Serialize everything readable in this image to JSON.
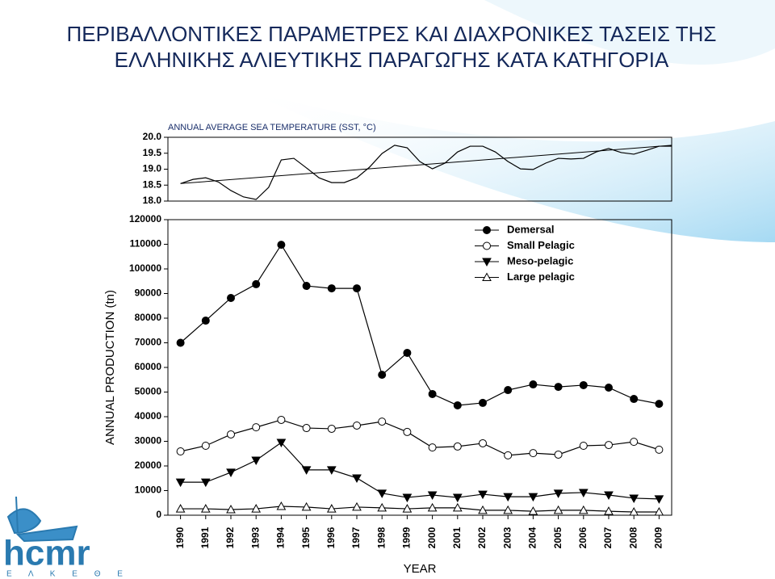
{
  "title_lines": [
    "ΠΕΡΙΒΑΛΛΟΝΤΙΚΕΣ ΠΑΡΑΜΕΤΡΕΣ ΚΑΙ ΔΙΑΧΡΟΝΙΚΕΣ ΤΑΣΕΙΣ  ΤΗΣ",
    "ΕΛΛΗΝΙΚΗΣ ΑΛΙΕΥΤΙΚΗΣ ΠΑΡΑΓΩΓΗΣ ΚΑΤΑ ΚΑΤΗΓΟΡΙΑ"
  ],
  "logo": {
    "name": "hcmr",
    "subtitle": "Ε Λ Κ Ε Θ Ε"
  },
  "chart_data": [
    {
      "type": "line",
      "title": "ANNUAL AVERAGE SEA TEMPERATURE (SST, °C)",
      "color": "#000000",
      "x": [
        1990,
        1990.5,
        1991,
        1991.5,
        1992,
        1992.5,
        1993,
        1993.5,
        1994,
        1994.5,
        1995,
        1995.5,
        1996,
        1996.5,
        1997,
        1997.5,
        1998,
        1998.5,
        1999,
        1999.5,
        2000,
        2000.5,
        2001,
        2001.5,
        2002,
        2002.5,
        2003,
        2003.5,
        2004,
        2004.5,
        2005,
        2005.5,
        2006,
        2006.5,
        2007,
        2007.5,
        2008,
        2008.5,
        2009,
        2009.5
      ],
      "values": [
        18.55,
        18.68,
        18.73,
        18.6,
        18.33,
        18.13,
        18.05,
        18.43,
        19.29,
        19.34,
        19.04,
        18.73,
        18.58,
        18.58,
        18.73,
        19.06,
        19.49,
        19.75,
        19.67,
        19.24,
        19.01,
        19.19,
        19.54,
        19.72,
        19.72,
        19.54,
        19.24,
        19.01,
        18.99,
        19.19,
        19.34,
        19.32,
        19.34,
        19.54,
        19.65,
        19.52,
        19.47,
        19.59,
        19.72,
        19.72
      ],
      "trend": {
        "x": [
          1990,
          2009.5
        ],
        "values": [
          18.55,
          19.75
        ]
      },
      "xlim": [
        1989.5,
        2009.5
      ],
      "ylim": [
        18.0,
        20.0
      ],
      "yticks": [
        {
          "value": 18,
          "label": "18.0"
        },
        18.5,
        {
          "value": 19,
          "label": "19.0"
        },
        19.5,
        {
          "value": 20,
          "label": "20.0"
        }
      ]
    },
    {
      "type": "line",
      "x_label": "YEAR",
      "y_label": "ANNUAL PRODUCTION (tn)",
      "legend": "upper right",
      "categories": [
        "1990",
        "1991",
        "1992",
        "1993",
        "1994",
        "1995",
        "1996",
        "1997",
        "1998",
        "1999",
        "2000",
        "2001",
        "2002",
        "2003",
        "2004",
        "2005",
        "2006",
        "2007",
        "2008",
        "2009"
      ],
      "ylim": [
        0,
        120000
      ],
      "yticks": [
        0,
        10000,
        20000,
        30000,
        40000,
        50000,
        60000,
        70000,
        80000,
        90000,
        100000,
        110000,
        120000
      ],
      "series": [
        {
          "name": "Demersal",
          "color": "#000000",
          "marker": "circle",
          "marker_fill": "#000000",
          "values": [
            70000,
            79000,
            88200,
            93800,
            109800,
            93100,
            92100,
            92100,
            57000,
            65900,
            49200,
            44600,
            45600,
            50800,
            53100,
            52100,
            52800,
            51800,
            47200,
            45200
          ]
        },
        {
          "name": "Small Pelagic",
          "color": "#000000",
          "marker": "circle",
          "marker_fill": "#ffffff",
          "values": [
            25900,
            28200,
            32800,
            35700,
            38700,
            35400,
            35100,
            36400,
            38000,
            33800,
            27500,
            27900,
            29200,
            24300,
            25200,
            24600,
            28200,
            28500,
            29800,
            26600
          ]
        },
        {
          "name": "Meso-pelagic",
          "color": "#000000",
          "marker": "triangle-down",
          "marker_fill": "#000000",
          "values": [
            13400,
            13400,
            17400,
            22300,
            29500,
            18400,
            18400,
            15100,
            8900,
            7200,
            8200,
            7200,
            8500,
            7500,
            7500,
            8900,
            9200,
            8200,
            6900,
            6600
          ]
        },
        {
          "name": "Large pelagic",
          "color": "#000000",
          "marker": "triangle-up",
          "marker_fill": "#ffffff",
          "values": [
            2600,
            2600,
            2300,
            2600,
            3600,
            3300,
            2600,
            3300,
            3000,
            2600,
            3000,
            3000,
            2000,
            2000,
            1600,
            2000,
            2000,
            1600,
            1300,
            1300
          ]
        }
      ]
    }
  ]
}
